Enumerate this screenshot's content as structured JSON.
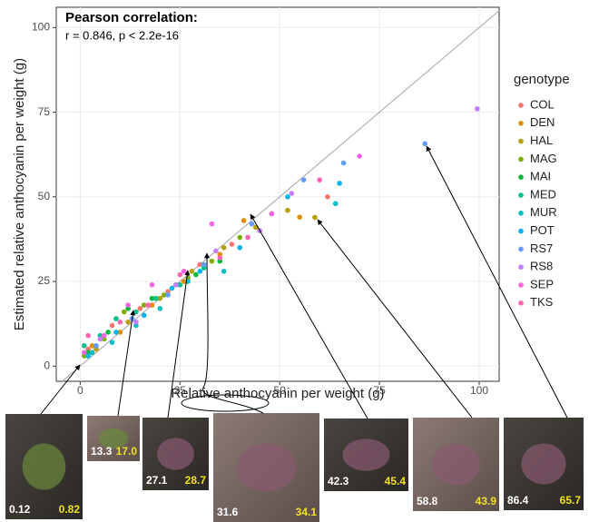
{
  "chart_data": {
    "type": "scatter",
    "annotation_title": "Pearson correlation:",
    "annotation_text": "r = 0.846, p < 2.2e-16",
    "x_label": "Relative anthocyanin per weight (g)",
    "y_label": "Estimated relative anthocyanin per weight (g)",
    "legend_title": "genotype",
    "xlim": [
      -6,
      105
    ],
    "ylim": [
      -4.5,
      106
    ],
    "xticks": [
      0,
      25,
      50,
      75,
      100
    ],
    "yticks": [
      0,
      25,
      50,
      75,
      100
    ],
    "grid": true,
    "series": [
      {
        "name": "COL",
        "color": "#F8766D",
        "x": [
          2,
          8,
          15,
          22,
          30,
          38,
          45,
          62
        ],
        "y": [
          5,
          12,
          17,
          22,
          30,
          36,
          40,
          50
        ]
      },
      {
        "name": "DEN",
        "color": "#DE8C00",
        "x": [
          3,
          10,
          18,
          26,
          35,
          41,
          48,
          55
        ],
        "y": [
          6,
          10,
          18,
          25,
          33,
          43,
          45,
          44
        ]
      },
      {
        "name": "HAL",
        "color": "#B79F00",
        "x": [
          4,
          12,
          20,
          28,
          36,
          44,
          52,
          58.8
        ],
        "y": [
          5,
          13,
          20,
          28,
          35,
          41,
          46,
          43.9
        ]
      },
      {
        "name": "MAG",
        "color": "#7CAE00",
        "x": [
          1,
          6,
          11,
          16,
          21,
          27,
          33,
          40
        ],
        "y": [
          3,
          8,
          16,
          18,
          21,
          26,
          31,
          38
        ]
      },
      {
        "name": "MAI",
        "color": "#00BA38",
        "x": [
          2,
          7,
          12,
          18,
          24,
          29,
          35
        ],
        "y": [
          4,
          10,
          17,
          20,
          24,
          27,
          31
        ]
      },
      {
        "name": "MED",
        "color": "#00C08B",
        "x": [
          1,
          5,
          9,
          14,
          19,
          25,
          31
        ],
        "y": [
          6,
          9,
          14,
          16,
          20,
          24,
          29
        ]
      },
      {
        "name": "MUR",
        "color": "#00BFC4",
        "x": [
          3,
          8,
          14,
          20,
          27,
          36,
          64
        ],
        "y": [
          4,
          7,
          12,
          17,
          25,
          28,
          48
        ]
      },
      {
        "name": "POT",
        "color": "#00B4F0",
        "x": [
          2,
          9,
          16,
          23,
          30,
          40,
          52,
          65
        ],
        "y": [
          3,
          10,
          15,
          23,
          28,
          35,
          50,
          54
        ]
      },
      {
        "name": "RS7",
        "color": "#619CFF",
        "x": [
          4,
          13,
          22,
          31,
          43,
          56,
          66,
          86.4
        ],
        "y": [
          6,
          14,
          21,
          30,
          42,
          55,
          60,
          65.7
        ]
      },
      {
        "name": "RS8",
        "color": "#C77CFF",
        "x": [
          5,
          14,
          24,
          34,
          45,
          53,
          99.5
        ],
        "y": [
          8,
          13,
          24,
          34,
          40,
          51,
          76
        ]
      },
      {
        "name": "SEP",
        "color": "#F564E3",
        "x": [
          1,
          6,
          12,
          18,
          26,
          33,
          48,
          70
        ],
        "y": [
          4,
          9,
          18,
          24,
          28,
          42,
          45,
          62
        ]
      },
      {
        "name": "TKS",
        "color": "#FF64B0",
        "x": [
          2,
          10,
          17,
          25,
          35,
          42,
          60
        ],
        "y": [
          9,
          13,
          18,
          27,
          32,
          38,
          55
        ]
      }
    ]
  },
  "photos": [
    {
      "measured": "0.12",
      "estimated": "0.82"
    },
    {
      "measured": "13.3",
      "estimated": "17.0"
    },
    {
      "measured": "27.1",
      "estimated": "28.7"
    },
    {
      "measured": "31.6",
      "estimated": "34.1"
    },
    {
      "measured": "42.3",
      "estimated": "45.4"
    },
    {
      "measured": "58.8",
      "estimated": "43.9"
    },
    {
      "measured": "86.4",
      "estimated": "65.7"
    }
  ]
}
